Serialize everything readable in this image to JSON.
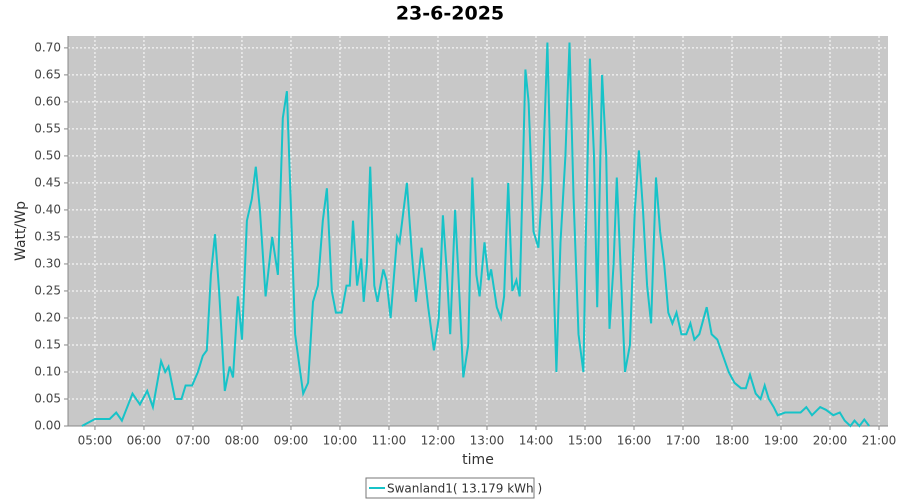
{
  "chart_data": {
    "type": "line",
    "title": "23-6-2025",
    "x_label": "time",
    "y_label": "Watt/Wp",
    "x": [
      "04:44",
      "05:00",
      "05:18",
      "05:26",
      "05:33",
      "05:46",
      "05:55",
      "06:04",
      "06:11",
      "06:21",
      "06:26",
      "06:30",
      "06:38",
      "06:46",
      "06:51",
      "06:59",
      "07:06",
      "07:12",
      "07:17",
      "07:22",
      "07:27",
      "07:32",
      "07:39",
      "07:45",
      "07:49",
      "07:55",
      "08:00",
      "08:06",
      "08:12",
      "08:17",
      "08:22",
      "08:29",
      "08:37",
      "08:44",
      "08:50",
      "08:55",
      "09:00",
      "09:05",
      "09:15",
      "09:21",
      "09:27",
      "09:33",
      "09:39",
      "09:44",
      "09:50",
      "09:55",
      "10:02",
      "10:08",
      "10:12",
      "10:16",
      "10:21",
      "10:26",
      "10:29",
      "10:33",
      "10:37",
      "10:42",
      "10:46",
      "10:53",
      "10:57",
      "11:02",
      "11:10",
      "11:13",
      "11:22",
      "11:28",
      "11:33",
      "11:40",
      "11:48",
      "11:55",
      "12:01",
      "12:06",
      "12:11",
      "12:15",
      "12:21",
      "12:26",
      "12:31",
      "12:37",
      "12:42",
      "12:47",
      "12:51",
      "12:57",
      "13:02",
      "13:05",
      "13:12",
      "13:17",
      "13:21",
      "13:26",
      "13:31",
      "13:36",
      "13:40",
      "13:47",
      "13:51",
      "13:57",
      "14:03",
      "14:08",
      "14:14",
      "14:19",
      "14:25",
      "14:30",
      "14:36",
      "14:41",
      "14:46",
      "14:52",
      "14:58",
      "15:01",
      "15:06",
      "15:11",
      "15:15",
      "15:21",
      "15:26",
      "15:30",
      "15:35",
      "15:39",
      "15:44",
      "15:49",
      "15:55",
      "16:01",
      "16:06",
      "16:11",
      "16:16",
      "16:21",
      "16:27",
      "16:32",
      "16:37",
      "16:42",
      "16:47",
      "16:52",
      "16:58",
      "17:04",
      "17:09",
      "17:14",
      "17:20",
      "17:29",
      "17:35",
      "17:42",
      "17:49",
      "17:56",
      "18:03",
      "18:11",
      "18:17",
      "18:22",
      "18:29",
      "18:35",
      "18:40",
      "18:45",
      "18:51",
      "18:56",
      "19:05",
      "19:24",
      "19:31",
      "19:38",
      "19:48",
      "19:55",
      "20:04",
      "20:12",
      "20:18",
      "20:25",
      "20:30",
      "20:36",
      "20:42",
      "20:48"
    ],
    "series": [
      {
        "name": "Swanland1( 13.179 kWh )",
        "color": "#17c3c8",
        "values": [
          0.0,
          0.013,
          0.013,
          0.025,
          0.01,
          0.06,
          0.04,
          0.065,
          0.035,
          0.12,
          0.1,
          0.11,
          0.05,
          0.05,
          0.075,
          0.075,
          0.1,
          0.13,
          0.14,
          0.28,
          0.355,
          0.25,
          0.065,
          0.11,
          0.09,
          0.24,
          0.16,
          0.38,
          0.42,
          0.48,
          0.4,
          0.24,
          0.35,
          0.28,
          0.57,
          0.62,
          0.4,
          0.17,
          0.06,
          0.08,
          0.23,
          0.26,
          0.38,
          0.44,
          0.25,
          0.21,
          0.21,
          0.26,
          0.26,
          0.38,
          0.26,
          0.31,
          0.23,
          0.3,
          0.48,
          0.26,
          0.23,
          0.29,
          0.27,
          0.2,
          0.35,
          0.34,
          0.45,
          0.32,
          0.23,
          0.33,
          0.22,
          0.14,
          0.2,
          0.39,
          0.28,
          0.17,
          0.4,
          0.25,
          0.09,
          0.15,
          0.46,
          0.28,
          0.24,
          0.34,
          0.27,
          0.29,
          0.22,
          0.2,
          0.24,
          0.45,
          0.25,
          0.27,
          0.24,
          0.66,
          0.6,
          0.36,
          0.33,
          0.45,
          0.71,
          0.4,
          0.1,
          0.34,
          0.5,
          0.71,
          0.42,
          0.17,
          0.1,
          0.35,
          0.68,
          0.5,
          0.22,
          0.65,
          0.5,
          0.18,
          0.3,
          0.46,
          0.28,
          0.1,
          0.15,
          0.4,
          0.51,
          0.4,
          0.26,
          0.19,
          0.46,
          0.36,
          0.3,
          0.21,
          0.19,
          0.21,
          0.17,
          0.17,
          0.19,
          0.16,
          0.17,
          0.22,
          0.17,
          0.16,
          0.13,
          0.1,
          0.08,
          0.07,
          0.07,
          0.095,
          0.06,
          0.05,
          0.075,
          0.05,
          0.035,
          0.02,
          0.025,
          0.025,
          0.035,
          0.02,
          0.035,
          0.03,
          0.02,
          0.025,
          0.01,
          0.0,
          0.01,
          0.0,
          0.012,
          0.0
        ]
      }
    ],
    "xlim": [
      "04:27",
      "21:11"
    ],
    "xticks": [
      "05:00",
      "06:00",
      "07:00",
      "08:00",
      "09:00",
      "10:00",
      "11:00",
      "12:00",
      "13:00",
      "14:00",
      "15:00",
      "16:00",
      "17:00",
      "18:00",
      "19:00",
      "20:00",
      "21:00"
    ],
    "ylim": [
      0,
      0.722
    ],
    "yticks": [
      {
        "value": 0,
        "label": "0.00"
      },
      {
        "value": 0.05,
        "label": "0.05"
      },
      {
        "value": 0.1,
        "label": "0.10"
      },
      {
        "value": 0.15,
        "label": "0.15"
      },
      {
        "value": 0.2,
        "label": "0.20"
      },
      {
        "value": 0.25,
        "label": "0.25"
      },
      {
        "value": 0.3,
        "label": "0.30"
      },
      {
        "value": 0.35,
        "label": "0.35"
      },
      {
        "value": 0.4,
        "label": "0.40"
      },
      {
        "value": 0.45,
        "label": "0.45"
      },
      {
        "value": 0.5,
        "label": "0.50"
      },
      {
        "value": 0.55,
        "label": "0.55"
      },
      {
        "value": 0.6,
        "label": "0.60"
      },
      {
        "value": 0.65,
        "label": "0.65"
      },
      {
        "value": 0.7,
        "label": "0.70"
      }
    ],
    "grid": true,
    "legend": "bottom"
  }
}
